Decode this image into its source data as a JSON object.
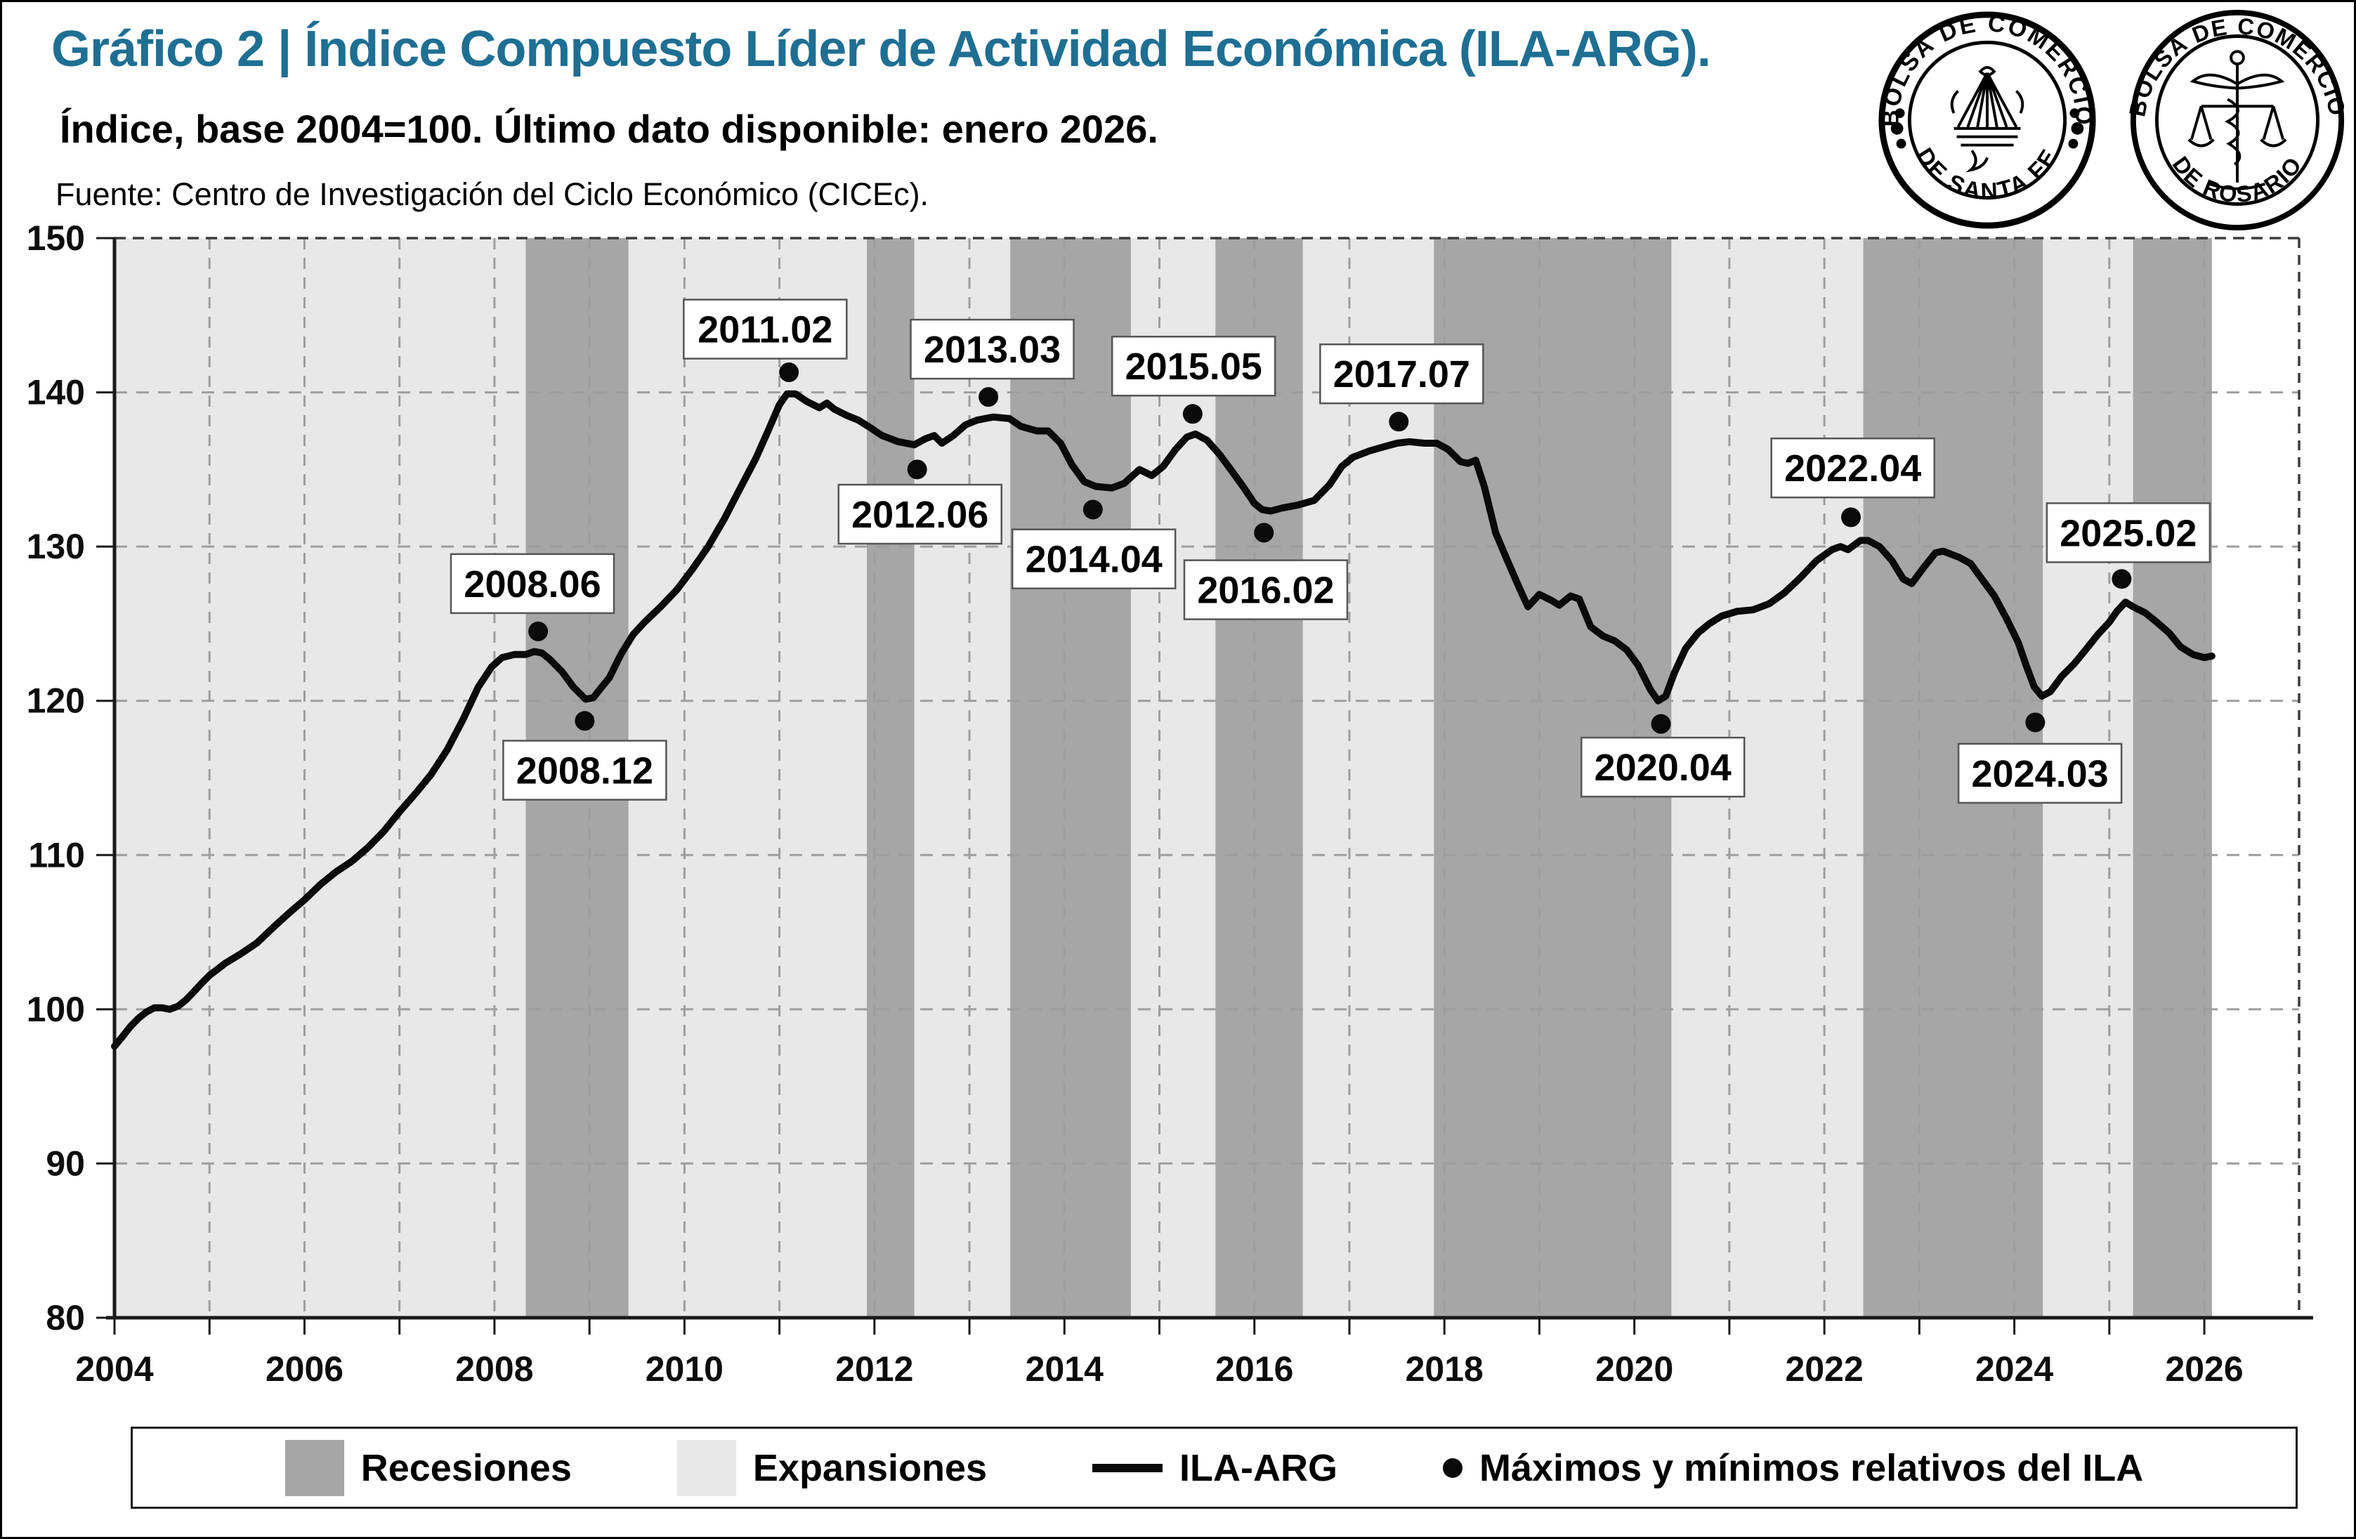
{
  "header": {
    "title": "Gráfico 2 | Índice Compuesto Líder de Actividad Económica (ILA-ARG).",
    "subtitle": "Índice, base 2004=100. Último dato disponible: enero 2026.",
    "source": "Fuente: Centro de Investigación del Ciclo Económico (CICEc)."
  },
  "logos": [
    {
      "name": "bolsa-comercio-santa-fe",
      "ring_top": "BOLSA DE COMERCIO",
      "ring_bottom": "DE SANTA FE"
    },
    {
      "name": "bolsa-comercio-rosario",
      "ring_top": "BOLSA DE COMERCIO",
      "ring_bottom": "DE ROSARIO"
    }
  ],
  "legend": {
    "items": [
      {
        "key": "recessions",
        "label": "Recesiones"
      },
      {
        "key": "expansions",
        "label": "Expansiones"
      },
      {
        "key": "ila-line",
        "label": "ILA-ARG"
      },
      {
        "key": "extrema",
        "label": "Máximos y mínimos relativos del ILA"
      }
    ]
  },
  "chart_data": {
    "type": "line",
    "title": "Índice Compuesto Líder de Actividad Económica (ILA-ARG)",
    "xlabel": "",
    "ylabel": "",
    "x_axis": {
      "min": 2004,
      "max": 2026.92,
      "tick_interval": 1,
      "label_interval": 2,
      "tick_labels": [
        "2004",
        "2006",
        "2008",
        "2010",
        "2012",
        "2014",
        "2016",
        "2018",
        "2020",
        "2022",
        "2024",
        "2026"
      ]
    },
    "y_axis": {
      "min": 80,
      "max": 150,
      "tick_interval": 10,
      "tick_labels": [
        "80",
        "90",
        "100",
        "110",
        "120",
        "130",
        "140",
        "150"
      ]
    },
    "grid": true,
    "legend_position": "bottom",
    "classified_until": 2026.08,
    "recessions": [
      [
        2008.33,
        2009.41
      ],
      [
        2011.92,
        2012.42
      ],
      [
        2013.43,
        2014.7
      ],
      [
        2015.59,
        2016.51
      ],
      [
        2017.89,
        2020.39
      ],
      [
        2022.41,
        2024.3
      ],
      [
        2025.25,
        2026.08
      ]
    ],
    "series": [
      {
        "name": "ILA-ARG",
        "points": [
          [
            2004.0,
            97.6
          ],
          [
            2004.08,
            98.2
          ],
          [
            2004.17,
            98.9
          ],
          [
            2004.25,
            99.4
          ],
          [
            2004.33,
            99.8
          ],
          [
            2004.42,
            100.1
          ],
          [
            2004.5,
            100.1
          ],
          [
            2004.58,
            100.0
          ],
          [
            2004.67,
            100.2
          ],
          [
            2004.75,
            100.6
          ],
          [
            2004.83,
            101.1
          ],
          [
            2004.92,
            101.7
          ],
          [
            2005.0,
            102.2
          ],
          [
            2005.17,
            103.0
          ],
          [
            2005.33,
            103.6
          ],
          [
            2005.5,
            104.3
          ],
          [
            2005.67,
            105.3
          ],
          [
            2005.83,
            106.2
          ],
          [
            2006.0,
            107.1
          ],
          [
            2006.17,
            108.1
          ],
          [
            2006.33,
            108.9
          ],
          [
            2006.5,
            109.6
          ],
          [
            2006.67,
            110.5
          ],
          [
            2006.83,
            111.5
          ],
          [
            2007.0,
            112.8
          ],
          [
            2007.17,
            114.0
          ],
          [
            2007.33,
            115.2
          ],
          [
            2007.5,
            116.8
          ],
          [
            2007.67,
            118.8
          ],
          [
            2007.83,
            120.9
          ],
          [
            2007.97,
            122.2
          ],
          [
            2008.08,
            122.8
          ],
          [
            2008.21,
            123.0
          ],
          [
            2008.33,
            123.0
          ],
          [
            2008.42,
            123.2
          ],
          [
            2008.5,
            123.1
          ],
          [
            2008.58,
            122.7
          ],
          [
            2008.71,
            121.9
          ],
          [
            2008.83,
            120.9
          ],
          [
            2008.96,
            120.1
          ],
          [
            2009.04,
            120.2
          ],
          [
            2009.13,
            120.9
          ],
          [
            2009.21,
            121.5
          ],
          [
            2009.33,
            123.0
          ],
          [
            2009.46,
            124.3
          ],
          [
            2009.58,
            125.1
          ],
          [
            2009.75,
            126.1
          ],
          [
            2009.92,
            127.2
          ],
          [
            2010.08,
            128.5
          ],
          [
            2010.25,
            130.0
          ],
          [
            2010.42,
            131.8
          ],
          [
            2010.58,
            133.7
          ],
          [
            2010.75,
            135.7
          ],
          [
            2010.88,
            137.5
          ],
          [
            2011.0,
            139.2
          ],
          [
            2011.08,
            139.9
          ],
          [
            2011.17,
            139.9
          ],
          [
            2011.29,
            139.4
          ],
          [
            2011.42,
            139.0
          ],
          [
            2011.5,
            139.3
          ],
          [
            2011.58,
            138.9
          ],
          [
            2011.71,
            138.5
          ],
          [
            2011.83,
            138.2
          ],
          [
            2011.96,
            137.7
          ],
          [
            2012.08,
            137.2
          ],
          [
            2012.25,
            136.8
          ],
          [
            2012.42,
            136.6
          ],
          [
            2012.54,
            137.0
          ],
          [
            2012.63,
            137.2
          ],
          [
            2012.71,
            136.7
          ],
          [
            2012.83,
            137.2
          ],
          [
            2012.96,
            137.9
          ],
          [
            2013.08,
            138.2
          ],
          [
            2013.25,
            138.4
          ],
          [
            2013.42,
            138.3
          ],
          [
            2013.54,
            137.8
          ],
          [
            2013.71,
            137.5
          ],
          [
            2013.83,
            137.5
          ],
          [
            2013.96,
            136.7
          ],
          [
            2014.08,
            135.3
          ],
          [
            2014.21,
            134.2
          ],
          [
            2014.33,
            133.9
          ],
          [
            2014.5,
            133.8
          ],
          [
            2014.63,
            134.1
          ],
          [
            2014.79,
            135.0
          ],
          [
            2014.92,
            134.6
          ],
          [
            2015.04,
            135.2
          ],
          [
            2015.17,
            136.3
          ],
          [
            2015.29,
            137.1
          ],
          [
            2015.38,
            137.3
          ],
          [
            2015.5,
            136.9
          ],
          [
            2015.63,
            136.0
          ],
          [
            2015.75,
            135.0
          ],
          [
            2015.88,
            133.9
          ],
          [
            2016.0,
            132.8
          ],
          [
            2016.08,
            132.4
          ],
          [
            2016.17,
            132.3
          ],
          [
            2016.29,
            132.5
          ],
          [
            2016.46,
            132.7
          ],
          [
            2016.63,
            133.0
          ],
          [
            2016.79,
            134.0
          ],
          [
            2016.92,
            135.2
          ],
          [
            2017.04,
            135.8
          ],
          [
            2017.21,
            136.2
          ],
          [
            2017.38,
            136.5
          ],
          [
            2017.5,
            136.7
          ],
          [
            2017.63,
            136.8
          ],
          [
            2017.79,
            136.7
          ],
          [
            2017.92,
            136.7
          ],
          [
            2018.04,
            136.3
          ],
          [
            2018.17,
            135.5
          ],
          [
            2018.25,
            135.4
          ],
          [
            2018.33,
            135.6
          ],
          [
            2018.42,
            133.9
          ],
          [
            2018.54,
            130.9
          ],
          [
            2018.67,
            129.0
          ],
          [
            2018.79,
            127.3
          ],
          [
            2018.88,
            126.1
          ],
          [
            2019.0,
            126.9
          ],
          [
            2019.13,
            126.5
          ],
          [
            2019.21,
            126.2
          ],
          [
            2019.33,
            126.8
          ],
          [
            2019.42,
            126.6
          ],
          [
            2019.54,
            124.8
          ],
          [
            2019.67,
            124.2
          ],
          [
            2019.79,
            123.9
          ],
          [
            2019.92,
            123.3
          ],
          [
            2020.04,
            122.3
          ],
          [
            2020.17,
            120.7
          ],
          [
            2020.25,
            120.0
          ],
          [
            2020.33,
            120.3
          ],
          [
            2020.42,
            121.8
          ],
          [
            2020.54,
            123.4
          ],
          [
            2020.67,
            124.4
          ],
          [
            2020.79,
            125.0
          ],
          [
            2020.92,
            125.5
          ],
          [
            2021.08,
            125.8
          ],
          [
            2021.25,
            125.9
          ],
          [
            2021.42,
            126.3
          ],
          [
            2021.58,
            127.0
          ],
          [
            2021.75,
            128.0
          ],
          [
            2021.92,
            129.1
          ],
          [
            2022.08,
            129.8
          ],
          [
            2022.17,
            130.0
          ],
          [
            2022.25,
            129.8
          ],
          [
            2022.38,
            130.4
          ],
          [
            2022.46,
            130.4
          ],
          [
            2022.58,
            130.0
          ],
          [
            2022.71,
            129.1
          ],
          [
            2022.83,
            127.9
          ],
          [
            2022.92,
            127.6
          ],
          [
            2023.04,
            128.6
          ],
          [
            2023.17,
            129.6
          ],
          [
            2023.25,
            129.7
          ],
          [
            2023.42,
            129.3
          ],
          [
            2023.54,
            128.9
          ],
          [
            2023.67,
            127.8
          ],
          [
            2023.79,
            126.8
          ],
          [
            2023.92,
            125.3
          ],
          [
            2024.04,
            123.8
          ],
          [
            2024.13,
            122.2
          ],
          [
            2024.21,
            120.9
          ],
          [
            2024.29,
            120.3
          ],
          [
            2024.38,
            120.6
          ],
          [
            2024.5,
            121.6
          ],
          [
            2024.63,
            122.4
          ],
          [
            2024.75,
            123.3
          ],
          [
            2024.88,
            124.3
          ],
          [
            2025.0,
            125.1
          ],
          [
            2025.08,
            125.8
          ],
          [
            2025.17,
            126.4
          ],
          [
            2025.25,
            126.1
          ],
          [
            2025.38,
            125.7
          ],
          [
            2025.5,
            125.1
          ],
          [
            2025.63,
            124.4
          ],
          [
            2025.75,
            123.5
          ],
          [
            2025.88,
            123.0
          ],
          [
            2026.0,
            122.8
          ],
          [
            2026.08,
            122.9
          ]
        ]
      }
    ],
    "markers": [
      {
        "label": "2008.06",
        "x": 2008.46,
        "y": 124.5,
        "lx": 2008.4,
        "ly": 127.6
      },
      {
        "label": "2008.12",
        "x": 2008.95,
        "y": 118.7,
        "lx": 2008.95,
        "ly": 115.5
      },
      {
        "label": "2011.02",
        "x": 2011.1,
        "y": 141.3,
        "lx": 2010.85,
        "ly": 144.1
      },
      {
        "label": "2012.06",
        "x": 2012.45,
        "y": 135.0,
        "lx": 2012.48,
        "ly": 132.1
      },
      {
        "label": "2013.03",
        "x": 2013.2,
        "y": 139.7,
        "lx": 2013.24,
        "ly": 142.8
      },
      {
        "label": "2014.04",
        "x": 2014.3,
        "y": 132.4,
        "lx": 2014.31,
        "ly": 129.2
      },
      {
        "label": "2015.05",
        "x": 2015.35,
        "y": 138.6,
        "lx": 2015.36,
        "ly": 141.7
      },
      {
        "label": "2016.02",
        "x": 2016.1,
        "y": 130.9,
        "lx": 2016.12,
        "ly": 127.2
      },
      {
        "label": "2017.07",
        "x": 2017.52,
        "y": 138.1,
        "lx": 2017.55,
        "ly": 141.2
      },
      {
        "label": "2020.04",
        "x": 2020.28,
        "y": 118.5,
        "lx": 2020.3,
        "ly": 115.7
      },
      {
        "label": "2022.04",
        "x": 2022.28,
        "y": 131.9,
        "lx": 2022.3,
        "ly": 135.1
      },
      {
        "label": "2024.03",
        "x": 2024.22,
        "y": 118.6,
        "lx": 2024.27,
        "ly": 115.3
      },
      {
        "label": "2025.02",
        "x": 2025.13,
        "y": 127.9,
        "lx": 2025.2,
        "ly": 130.9
      }
    ],
    "colors": {
      "recession": "#a6a6a6",
      "expansion": "#e8e8e8",
      "line": "#0a0a0a",
      "grid": "#9e9e9e",
      "frame_dash": "#3d3d3d",
      "axis": "#1a1a1a",
      "title": "#1e6f93",
      "marker_box_border": "#555555"
    }
  }
}
